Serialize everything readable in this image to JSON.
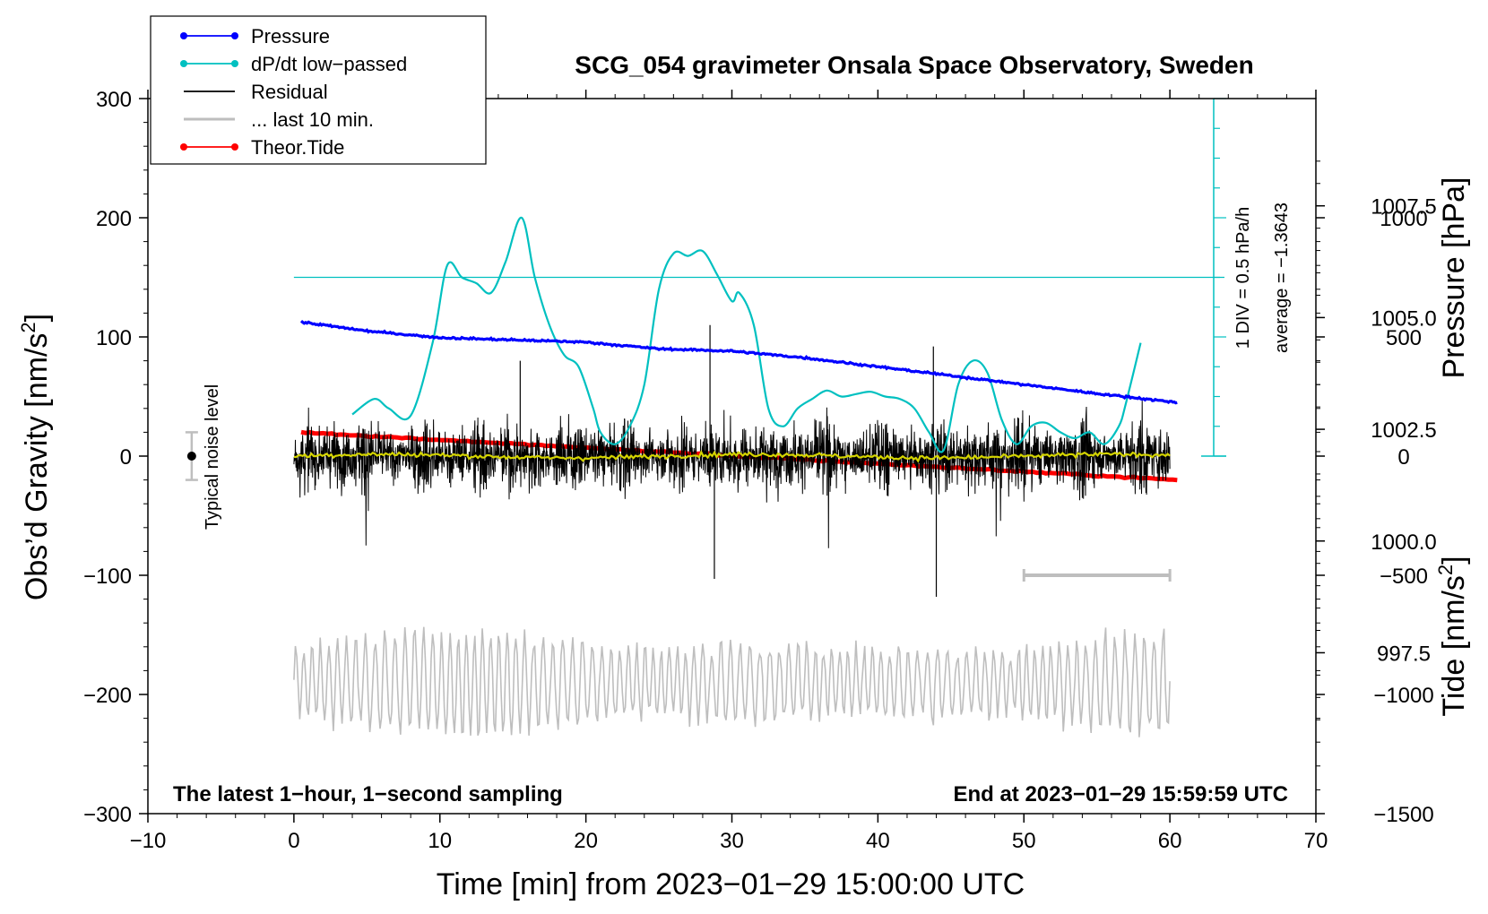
{
  "chart_data": {
    "type": "line",
    "title": "SCG_054 gravimeter Onsala Space Observatory, Sweden",
    "xlabel": "Time [min] from 2023−01−29 15:00:00 UTC",
    "ylabel_left": "Obs’d Gravity [nm/s",
    "ylabel_left_sup": "2",
    "ylabel_left_tail": "]",
    "ylabel_right_top": "Pressure [hPa]",
    "ylabel_right_bottom": "Tide [nm/s",
    "ylabel_right_bottom_sup": "2",
    "ylabel_right_bottom_tail": "]",
    "xlim": [
      -10,
      70
    ],
    "ylim_left": [
      -300,
      300
    ],
    "x_ticks": [
      -10,
      0,
      10,
      20,
      30,
      40,
      50,
      60,
      70
    ],
    "x_tick_labels": [
      "−10",
      "0",
      "10",
      "20",
      "30",
      "40",
      "50",
      "60",
      "70"
    ],
    "y_ticks": [
      300,
      200,
      100,
      0,
      -100,
      -200,
      -300
    ],
    "y_tick_labels": [
      "300",
      "200",
      "100",
      "0",
      "−100",
      "−200",
      "−300"
    ],
    "pressure_axis": {
      "ticks": [
        1007.5,
        1005.0,
        1002.5,
        1000.0,
        997.5
      ],
      "tick_labels": [
        "1007.5",
        "1005.0",
        "1002.5",
        "1000.0",
        "997.5"
      ],
      "range_hpa": [
        993.9,
        1009.9
      ]
    },
    "tide_axis": {
      "ticks": [
        1000,
        500,
        0,
        -500,
        -1000,
        -1500
      ],
      "tick_labels": [
        "1000",
        "500",
        "0",
        "−500",
        "−1000",
        "−1500"
      ],
      "range": [
        -1500,
        1500
      ]
    },
    "legend": [
      {
        "label": "Pressure",
        "color": "#0000ff",
        "marker": true
      },
      {
        "label": "dP/dt low−passed",
        "color": "#00c0c0",
        "marker": true
      },
      {
        "label": "Residual",
        "color": "#000000",
        "marker": false
      },
      {
        "label": "... last 10 min.",
        "color": "#bebebe",
        "marker": false
      },
      {
        "label": "Theor.Tide",
        "color": "#ff0000",
        "marker": true
      }
    ],
    "series": [
      {
        "name": "Pressure",
        "color": "#0000ff",
        "units": "hPa",
        "x": [
          0.5,
          5,
          10,
          15,
          20,
          25,
          30,
          35,
          40,
          45,
          50,
          55,
          60.5
        ],
        "values": [
          1004.9,
          1004.7,
          1004.55,
          1004.5,
          1004.45,
          1004.3,
          1004.25,
          1004.1,
          1003.9,
          1003.7,
          1003.5,
          1003.3,
          1003.1
        ]
      },
      {
        "name": "dP/dt low−passed",
        "color": "#00c0c0",
        "units": "gravity-axis equivalent",
        "x": [
          4,
          5.5,
          6.5,
          8,
          9.5,
          10.5,
          11.5,
          12.5,
          13.5,
          14.5,
          15.6,
          16.5,
          17.5,
          18.5,
          19.5,
          20.5,
          21,
          22,
          23,
          24,
          25,
          26,
          27,
          28,
          29,
          30,
          30.5,
          31.5,
          32.5,
          33.5,
          34.5,
          35.5,
          36.5,
          37.5,
          38.5,
          39.5,
          40.5,
          41.5,
          42.5,
          43.5,
          44.5,
          45.5,
          46.5,
          47.5,
          48.5,
          49.5,
          50.5,
          51.5,
          52.5,
          53.5,
          54.5,
          55.5,
          56.5,
          57,
          58
        ],
        "values": [
          35,
          48,
          40,
          34,
          95,
          160,
          150,
          145,
          137,
          163,
          200,
          150,
          110,
          85,
          75,
          40,
          20,
          10,
          25,
          60,
          140,
          170,
          168,
          172,
          152,
          130,
          137,
          110,
          40,
          25,
          40,
          48,
          55,
          50,
          52,
          54,
          50,
          48,
          40,
          20,
          5,
          60,
          80,
          70,
          30,
          10,
          25,
          28,
          20,
          15,
          20,
          10,
          25,
          45,
          95
        ]
      },
      {
        "name": "Residual",
        "color": "#000000",
        "units": "nm/s2",
        "x_range": [
          0,
          60
        ],
        "typical_range": [
          -60,
          60
        ],
        "extremes": [
          {
            "x": 28.5,
            "value": 110
          },
          {
            "x": 28.8,
            "value": -103
          },
          {
            "x": 44,
            "value": -118
          },
          {
            "x": 43.8,
            "value": 92
          },
          {
            "x": 15.5,
            "value": 80
          }
        ]
      },
      {
        "name": "... last 10 min.",
        "color": "#bebebe",
        "units": "nm/s2 (offset)",
        "x_range": [
          0,
          60
        ],
        "center": -190,
        "typical_range": [
          -240,
          -150
        ]
      },
      {
        "name": "Theor.Tide",
        "color": "#ff0000",
        "units": "nm/s2 (tide axis)",
        "x": [
          0.5,
          60.5
        ],
        "values": [
          100,
          -100
        ]
      },
      {
        "name": "Smoothed residual",
        "color": "#d4d400",
        "units": "nm/s2",
        "x_range": [
          0,
          60
        ],
        "center": 0
      }
    ],
    "pressure_rate_scale": {
      "baseline_label": "average = −1.3643",
      "div_label": "1 DIV = 0.5 hPa/h",
      "baseline_y": 150,
      "x": 63
    },
    "noise_level": {
      "label": "Typical noise level",
      "x": -7,
      "center": 0,
      "range": [
        -20,
        20
      ]
    },
    "scale_bar_10min": {
      "x": [
        50,
        60
      ],
      "y": -100
    },
    "notes": {
      "left": "The latest 1−hour, 1−second sampling",
      "right": "End at 2023−01−29 15:59:59 UTC"
    }
  }
}
